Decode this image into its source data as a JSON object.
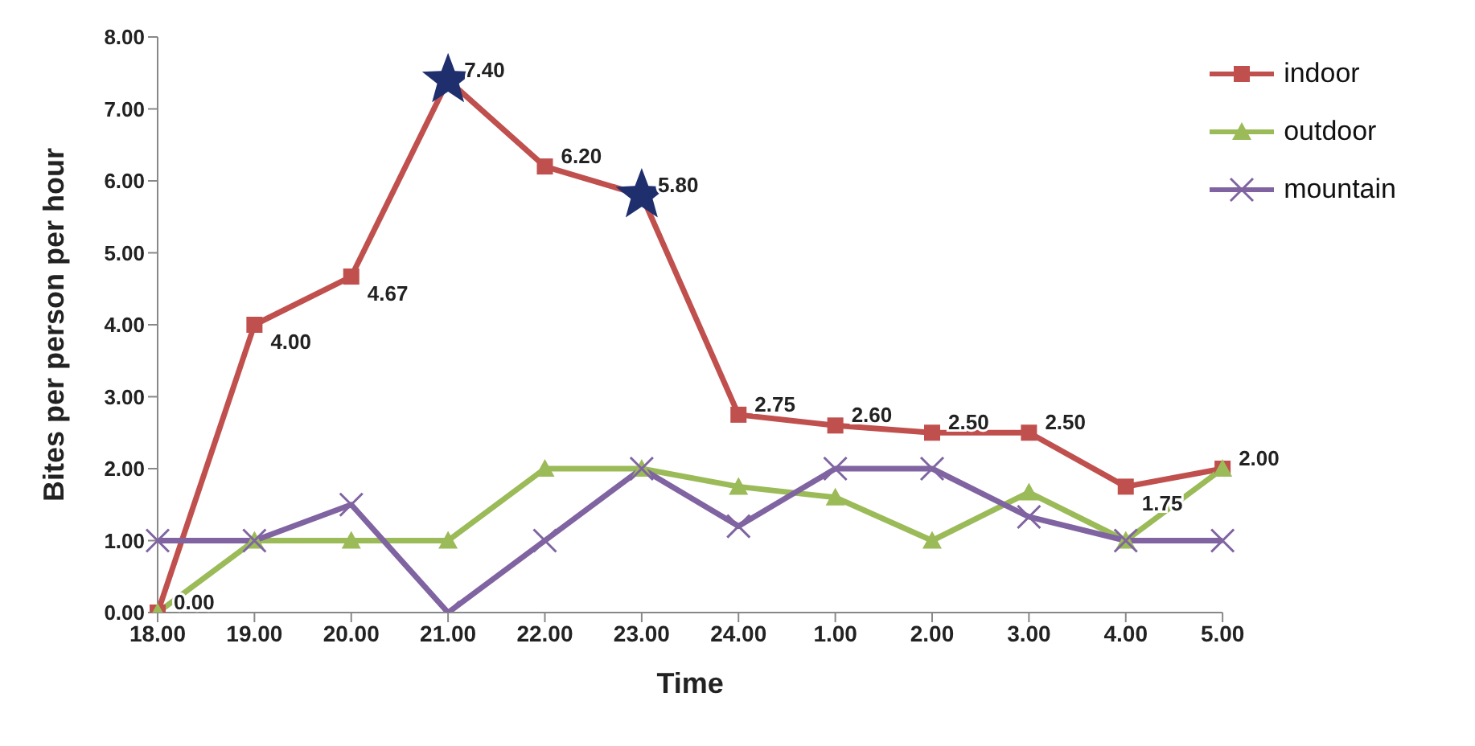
{
  "chart_data": {
    "type": "line",
    "xlabel": "Time",
    "ylabel": "Bites per person per hour",
    "categories": [
      "18.00",
      "19.00",
      "20.00",
      "21.00",
      "22.00",
      "23.00",
      "24.00",
      "1.00",
      "2.00",
      "3.00",
      "4.00",
      "5.00"
    ],
    "series": [
      {
        "name": "indoor",
        "color": "#c0504d",
        "marker": "square",
        "values": [
          0,
          4,
          4.67,
          7.4,
          6.2,
          5.8,
          2.75,
          2.6,
          2.5,
          2.5,
          1.75,
          2
        ],
        "value_labels": [
          "0.00",
          "4.00",
          "4.67",
          "7.40",
          "6.20",
          "5.80",
          "2.75",
          "2.60",
          "2.50",
          "2.50",
          "1.75",
          "2.00"
        ]
      },
      {
        "name": "outdoor",
        "color": "#9bbb59",
        "marker": "triangle",
        "values": [
          0,
          1,
          1,
          1,
          2,
          2,
          1.75,
          1.6,
          1,
          1.67,
          1,
          2
        ]
      },
      {
        "name": "mountain",
        "color": "#8064a2",
        "marker": "cross",
        "values": [
          1,
          1,
          1.5,
          0,
          1,
          2,
          1.2,
          2,
          2,
          1.33,
          1,
          1
        ]
      },
      {
        "type": "scatter",
        "color": "#1f2f6e",
        "marker": "star",
        "x": [
          "21.00",
          "23.00"
        ],
        "values": [
          7.4,
          5.8
        ]
      }
    ],
    "ylim": [
      0,
      8
    ],
    "yticks": [
      {
        "value": 0,
        "label": "0.00"
      },
      {
        "value": 1,
        "label": "1.00"
      },
      {
        "value": 2,
        "label": "2.00"
      },
      {
        "value": 3,
        "label": "3.00"
      },
      {
        "value": 4,
        "label": "4.00"
      },
      {
        "value": 5,
        "label": "5.00"
      },
      {
        "value": 6,
        "label": "6.00"
      },
      {
        "value": 7,
        "label": "7.00"
      },
      {
        "value": 8,
        "label": "8.00"
      }
    ],
    "grid": false,
    "legend": "top right",
    "line_style": "solid"
  }
}
